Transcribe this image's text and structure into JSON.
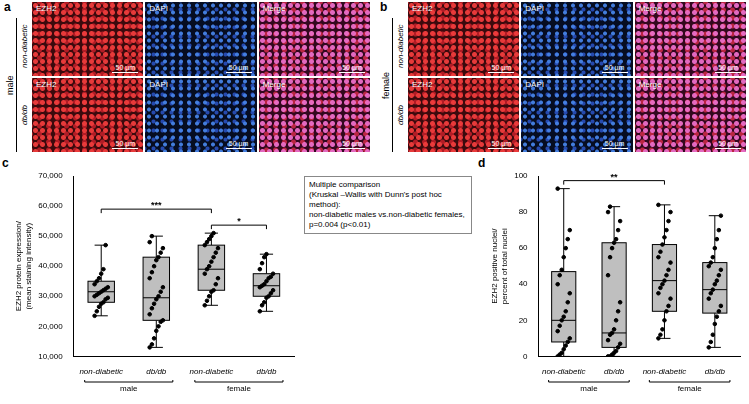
{
  "image_panels": [
    {
      "letter": "a",
      "group": "male",
      "rows": [
        "non-diabetic",
        "db/db"
      ],
      "columns": [
        "EZH2",
        "DAPI",
        "Merge"
      ],
      "scale_bar": "50 µm"
    },
    {
      "letter": "b",
      "group": "female",
      "rows": [
        "non-diabetic",
        "db/db"
      ],
      "columns": [
        "EZH2",
        "DAPI",
        "Merge"
      ],
      "scale_bar": "50 µm"
    }
  ],
  "chart_data": [
    {
      "type": "box",
      "panel": "c",
      "y_label": "EZH2 protein expression/ (mean staining intensity)",
      "categories": [
        "non-diabetic",
        "db/db",
        "non-diabetic",
        "db/db"
      ],
      "groups": [
        {
          "name": "male",
          "span": 2
        },
        {
          "name": "female",
          "span": 2
        }
      ],
      "ylim": [
        10000,
        70000
      ],
      "yticks": [
        {
          "value": 10000,
          "label": "10,000"
        },
        {
          "value": 20000,
          "label": "20,000"
        },
        {
          "value": 30000,
          "label": "30,000"
        },
        {
          "value": 40000,
          "label": "40,000"
        },
        {
          "value": 50000,
          "label": "50,000"
        },
        {
          "value": 60000,
          "label": "60,000"
        },
        {
          "value": 70000,
          "label": "70,000"
        }
      ],
      "grid": false,
      "color": "#bfbfbf",
      "boxes": [
        {
          "min": 23500,
          "q1": 28000,
          "median": 31500,
          "q3": 35000,
          "max": 47000
        },
        {
          "min": 13000,
          "q1": 22000,
          "median": 29500,
          "q3": 43000,
          "max": 50000
        },
        {
          "min": 27000,
          "q1": 32000,
          "median": 39000,
          "q3": 47000,
          "max": 51000
        },
        {
          "min": 25000,
          "q1": 30000,
          "median": 33500,
          "q3": 37500,
          "max": 44000
        }
      ],
      "points": [
        [
          23500,
          25000,
          26500,
          27500,
          28000,
          29000,
          29500,
          30000,
          30500,
          31000,
          31500,
          32000,
          32500,
          33000,
          34000,
          35000,
          36000,
          37500,
          39000,
          47000
        ],
        [
          13000,
          14000,
          16000,
          18500,
          20000,
          21500,
          22000,
          24000,
          26000,
          27500,
          29000,
          30000,
          31500,
          33000,
          36000,
          38000,
          40000,
          42000,
          43000,
          44500,
          46000,
          48000,
          50000
        ],
        [
          27000,
          28500,
          30000,
          31500,
          32000,
          34000,
          36000,
          37500,
          39000,
          40000,
          41500,
          43000,
          44500,
          46000,
          47000,
          48000,
          49000,
          50000,
          51000
        ],
        [
          25000,
          27000,
          28000,
          29500,
          30000,
          31000,
          32000,
          33000,
          33500,
          34000,
          35000,
          36000,
          36500,
          37500,
          39000,
          41000,
          43000,
          44000
        ]
      ],
      "significance": [
        {
          "from": 0,
          "to": 2,
          "label": "***"
        },
        {
          "from": 2,
          "to": 3,
          "label": "*"
        }
      ],
      "annotation": [
        "Multiple comparison",
        "(Kruskal –Wallis with Dunn's post hoc method):",
        "non-diabetic males vs.non-diabetic females,",
        "p=0.004 (p<0.01)"
      ]
    },
    {
      "type": "box",
      "panel": "d",
      "y_label": "EZH2 positive nuclei/ percent of total nuclei",
      "categories": [
        "non-diabetic",
        "db/db",
        "non-diabetic",
        "db/db"
      ],
      "groups": [
        {
          "name": "male",
          "span": 2
        },
        {
          "name": "female",
          "span": 2
        }
      ],
      "ylim": [
        0,
        100
      ],
      "yticks": [
        0,
        20,
        40,
        60,
        80,
        100
      ],
      "grid": false,
      "color": "#bfbfbf",
      "boxes": [
        {
          "min": 0,
          "q1": 8,
          "median": 20,
          "q3": 47,
          "max": 93
        },
        {
          "min": 0,
          "q1": 5,
          "median": 13,
          "q3": 63,
          "max": 83
        },
        {
          "min": 10,
          "q1": 25,
          "median": 42,
          "q3": 62,
          "max": 84
        },
        {
          "min": 5,
          "q1": 24,
          "median": 37,
          "q3": 52,
          "max": 78
        }
      ],
      "points": [
        [
          0,
          1,
          2,
          4,
          6,
          8,
          10,
          14,
          17,
          20,
          22,
          25,
          30,
          35,
          40,
          45,
          48,
          55,
          60,
          65,
          70,
          93
        ],
        [
          0,
          0,
          1,
          2,
          3,
          5,
          7,
          9,
          12,
          13,
          15,
          20,
          25,
          30,
          45,
          55,
          60,
          63,
          65,
          70,
          75,
          80,
          83
        ],
        [
          10,
          12,
          15,
          20,
          25,
          28,
          32,
          35,
          38,
          40,
          42,
          45,
          48,
          52,
          55,
          58,
          62,
          66,
          70,
          75,
          80,
          84
        ],
        [
          5,
          8,
          12,
          18,
          22,
          25,
          28,
          32,
          35,
          37,
          40,
          42,
          45,
          48,
          50,
          52,
          55,
          60,
          65,
          70,
          78
        ]
      ],
      "significance": [
        {
          "from": 0,
          "to": 2,
          "label": "**"
        }
      ]
    }
  ]
}
